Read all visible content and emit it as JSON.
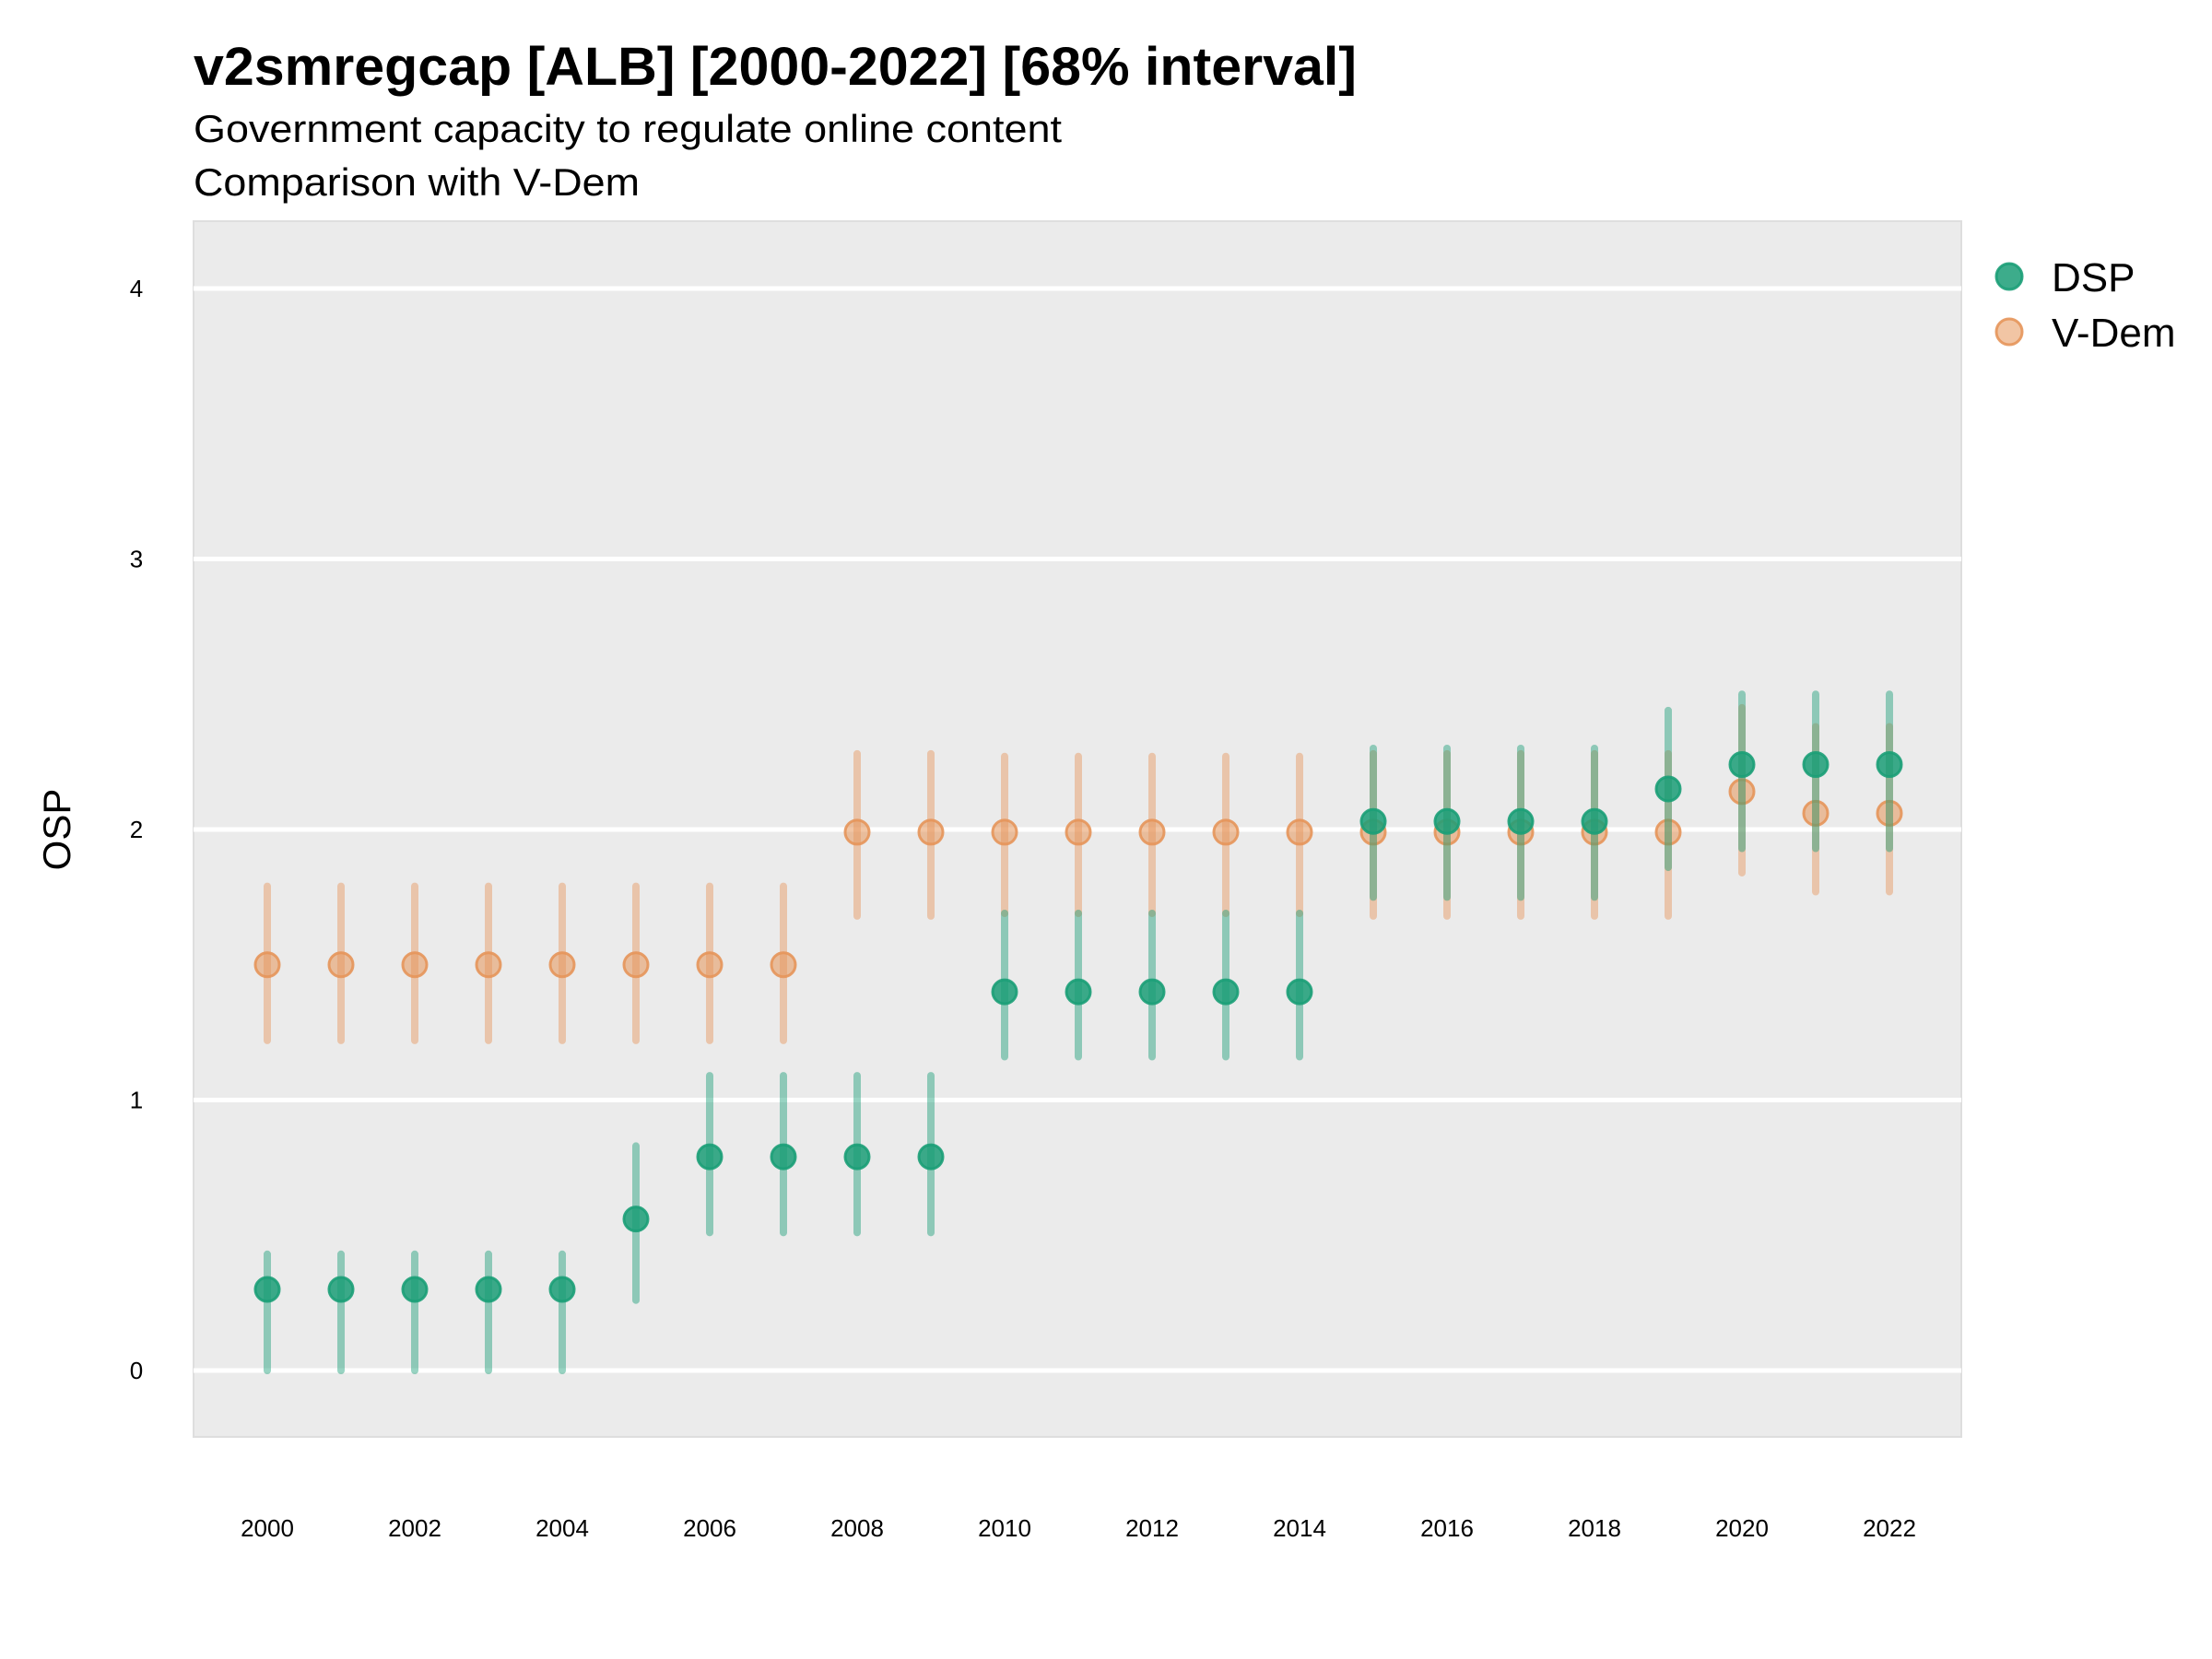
{
  "chart_data": {
    "type": "scatter",
    "title": "v2smregcap [ALB] [2000-2022] [68% interval]",
    "subtitle_lines": [
      "Government capacity to regulate online content",
      "Comparison with V-Dem"
    ],
    "xlabel": "",
    "ylabel": "OSP",
    "xlim": [
      1999,
      2023
    ],
    "ylim": [
      -0.25,
      4.25
    ],
    "x_ticks": [
      2000,
      2002,
      2004,
      2006,
      2008,
      2010,
      2012,
      2014,
      2016,
      2018,
      2020,
      2022
    ],
    "x_tick_labels": [
      "2000",
      "2002",
      "2004",
      "2006",
      "2008",
      "2010",
      "2012",
      "2014",
      "2016",
      "2018",
      "2020",
      "2022"
    ],
    "y_ticks": [
      0,
      1,
      2,
      3,
      4
    ],
    "y_tick_labels": [
      "0",
      "1",
      "2",
      "3",
      "4"
    ],
    "grid": true,
    "legend_position": "right",
    "x": [
      2000,
      2001,
      2002,
      2003,
      2004,
      2005,
      2006,
      2007,
      2008,
      2009,
      2010,
      2011,
      2012,
      2013,
      2014,
      2015,
      2016,
      2017,
      2018,
      2019,
      2020,
      2021,
      2022
    ],
    "series": [
      {
        "name": "V-Dem",
        "color": "#E6955A",
        "values": [
          1.5,
          1.5,
          1.5,
          1.5,
          1.5,
          1.5,
          1.5,
          1.5,
          1.99,
          1.99,
          1.99,
          1.99,
          1.99,
          1.99,
          1.99,
          1.99,
          1.99,
          1.99,
          1.99,
          1.99,
          2.14,
          2.06,
          2.06
        ],
        "lower": [
          1.22,
          1.22,
          1.22,
          1.22,
          1.22,
          1.22,
          1.22,
          1.22,
          1.68,
          1.68,
          1.69,
          1.69,
          1.69,
          1.69,
          1.69,
          1.68,
          1.68,
          1.68,
          1.68,
          1.68,
          1.84,
          1.77,
          1.77
        ],
        "upper": [
          1.79,
          1.79,
          1.79,
          1.79,
          1.79,
          1.79,
          1.79,
          1.79,
          2.28,
          2.28,
          2.27,
          2.27,
          2.27,
          2.27,
          2.27,
          2.28,
          2.28,
          2.28,
          2.28,
          2.28,
          2.45,
          2.38,
          2.38
        ]
      },
      {
        "name": "DSP",
        "color": "#1B9E77",
        "values": [
          0.3,
          0.3,
          0.3,
          0.3,
          0.3,
          0.56,
          0.79,
          0.79,
          0.79,
          0.79,
          1.4,
          1.4,
          1.4,
          1.4,
          1.4,
          2.03,
          2.03,
          2.03,
          2.03,
          2.15,
          2.24,
          2.24,
          2.24
        ],
        "lower": [
          0.0,
          0.0,
          0.0,
          0.0,
          0.0,
          0.26,
          0.51,
          0.51,
          0.51,
          0.51,
          1.16,
          1.16,
          1.16,
          1.16,
          1.16,
          1.75,
          1.75,
          1.75,
          1.75,
          1.86,
          1.93,
          1.93,
          1.93
        ],
        "upper": [
          0.43,
          0.43,
          0.43,
          0.43,
          0.43,
          0.83,
          1.09,
          1.09,
          1.09,
          1.09,
          1.69,
          1.69,
          1.69,
          1.69,
          1.69,
          2.3,
          2.3,
          2.3,
          2.3,
          2.44,
          2.5,
          2.5,
          2.5
        ]
      }
    ],
    "legend": [
      {
        "label": "DSP",
        "color": "#1B9E77"
      },
      {
        "label": "V-Dem",
        "color": "#E6955A"
      }
    ],
    "panel_background": "#EBEBEB",
    "gridline_color": "#FFFFFF"
  }
}
